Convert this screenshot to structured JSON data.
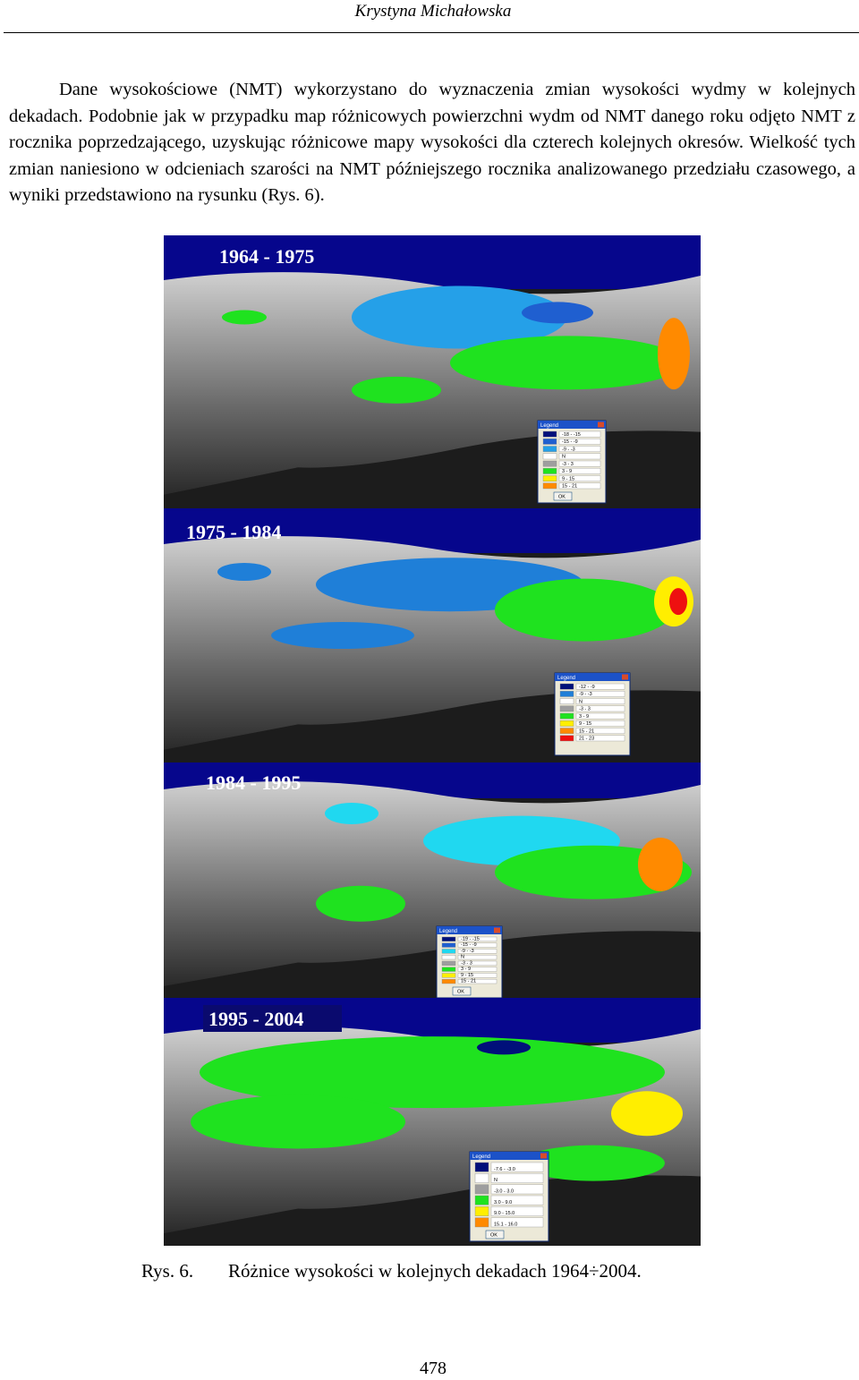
{
  "header": {
    "author": "Krystyna Michałowska"
  },
  "paragraph": "Dane wysokościowe (NMT) wykorzystano do wyznaczenia zmian wysokości wydmy w kolejnych dekadach. Podobnie jak w przypadku map różnicowych powierzchni wydm od NMT danego roku odjęto NMT z rocznika poprzedzającego, uzyskując różnicowe mapy wysokości dla czterech kolejnych okresów. Wielkość tych zmian naniesiono w odcieniach szarości na NMT późniejszego rocznika analizowanego przedziału czasowego, a wyniki przedstawiono na rysunku (Rys. 6).",
  "figure": {
    "panels": [
      {
        "title": "1964 - 1975",
        "legend_title": "Legend",
        "button": "OK",
        "legend": [
          {
            "label": "-18 - -15",
            "color": "#00107a"
          },
          {
            "label": "-15 - -9",
            "color": "#1f5fd0"
          },
          {
            "label": "-9 - -3",
            "color": "#25a0e8"
          },
          {
            "label": "N",
            "color": "#ffffff"
          },
          {
            "label": "-3 - 3",
            "color": "#9e9e9e"
          },
          {
            "label": "3 - 9",
            "color": "#1fe21f"
          },
          {
            "label": "9 - 15",
            "color": "#ffee00"
          },
          {
            "label": "15 - 21",
            "color": "#ff8a00"
          }
        ]
      },
      {
        "title": "1975 - 1984",
        "legend_title": "Legend",
        "button": null,
        "legend": [
          {
            "label": "-12 - -9",
            "color": "#00107a"
          },
          {
            "label": "-9 - -3",
            "color": "#1f7fd8"
          },
          {
            "label": "N",
            "color": "#ffffff"
          },
          {
            "label": "-3 - 3",
            "color": "#9e9e9e"
          },
          {
            "label": "3 - 9",
            "color": "#1fe21f"
          },
          {
            "label": "9 - 15",
            "color": "#ffee00"
          },
          {
            "label": "15 - 21",
            "color": "#ff8a00"
          },
          {
            "label": "21 - 23",
            "color": "#ee1010"
          }
        ]
      },
      {
        "title": "1984 - 1995",
        "legend_title": "Legend",
        "button": "OK",
        "legend": [
          {
            "label": "-19 - -15",
            "color": "#00107a"
          },
          {
            "label": "-15 - -9",
            "color": "#1f5fd0"
          },
          {
            "label": "-9 - -3",
            "color": "#20d8f0"
          },
          {
            "label": "N",
            "color": "#ffffff"
          },
          {
            "label": "-3 - 3",
            "color": "#9e9e9e"
          },
          {
            "label": "3 - 9",
            "color": "#1fe21f"
          },
          {
            "label": "9 - 15",
            "color": "#ffee00"
          },
          {
            "label": "15 - 21",
            "color": "#ff8a00"
          }
        ]
      },
      {
        "title": "1995 - 2004",
        "legend_title": "Legend",
        "button": "OK",
        "legend": [
          {
            "label": "-7.6 - -3.0",
            "color": "#00107a"
          },
          {
            "label": "N",
            "color": "#ffffff"
          },
          {
            "label": "-3.0 - 3.0",
            "color": "#9e9e9e"
          },
          {
            "label": "3.0 - 9.0",
            "color": "#1fe21f"
          },
          {
            "label": "9.0 - 15.0",
            "color": "#ffee00"
          },
          {
            "label": "15.1 - 16.0",
            "color": "#ff8a00"
          }
        ]
      }
    ],
    "caption_label": "Rys. 6.",
    "caption_text": "Różnice wysokości w kolejnych dekadach 1964÷2004."
  },
  "page_number": "478"
}
